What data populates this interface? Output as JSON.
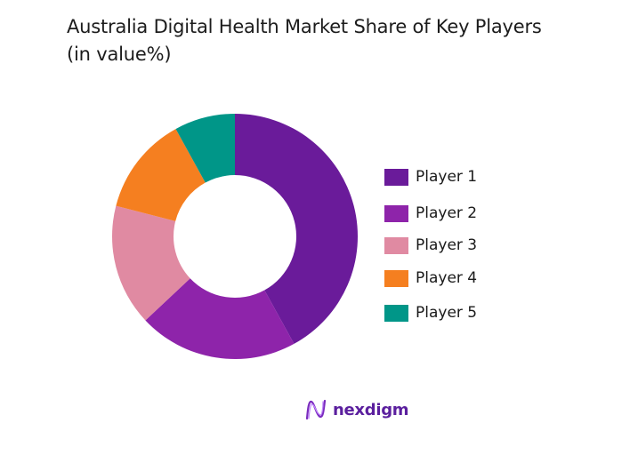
{
  "title_line1": "Australia Digital Health Market Share of Key Players",
  "title_line2": "(in value%)",
  "chart_data": {
    "type": "pie",
    "subtype": "donut",
    "title": "Australia Digital Health Market Share of Key Players (in value%)",
    "categories": [
      "Player 1",
      "Player 2",
      "Player 3",
      "Player 4",
      "Player 5"
    ],
    "values": [
      42,
      21,
      16,
      13,
      8
    ],
    "colors": [
      "#6a1b9a",
      "#8e24aa",
      "#e08aa2",
      "#f57f20",
      "#009688"
    ],
    "start_angle_deg": 0,
    "direction": "clockwise",
    "hole_ratio": 0.5,
    "legend_position": "right"
  },
  "legend": [
    {
      "label": "Player 1",
      "color": "#6a1b9a"
    },
    {
      "label": "Player 2",
      "color": "#8e24aa"
    },
    {
      "label": "Player 3",
      "color": "#e08aa2"
    },
    {
      "label": "Player 4",
      "color": "#f57f20"
    },
    {
      "label": "Player 5",
      "color": "#009688"
    }
  ],
  "brand": {
    "name": "nexdigm",
    "color": "#5b1f9e"
  }
}
